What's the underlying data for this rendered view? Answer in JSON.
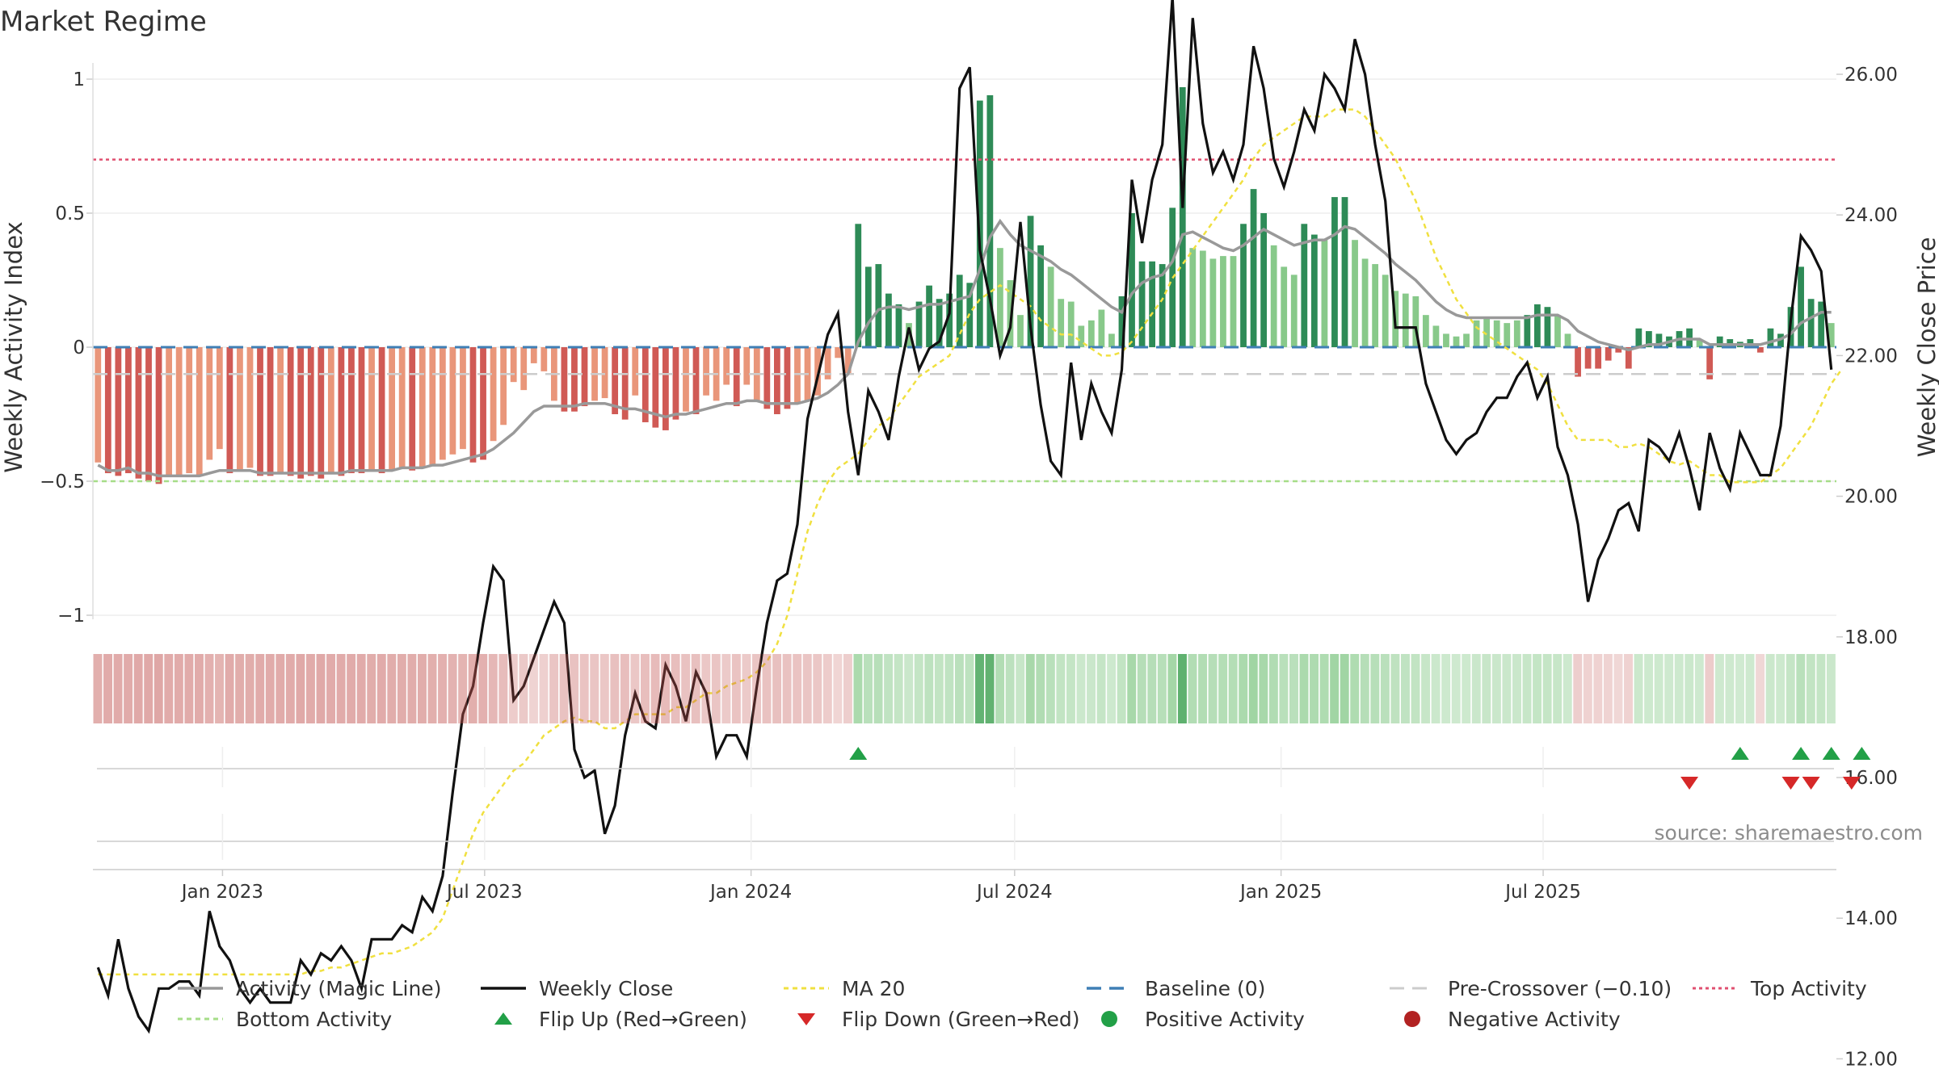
{
  "title": "Market Regime",
  "source": "source: sharemaestro.com",
  "colors": {
    "pos_dark": "#2e8b57",
    "pos_light": "#88c98a",
    "neg_dark": "#d05a55",
    "neg_light": "#e9967a",
    "magic": "#999999",
    "close": "#111111",
    "ma": "#f0e040",
    "baseline": "#3f7fb5",
    "precross": "#cccccc",
    "top": "#e05070",
    "bottom": "#a6dd88",
    "flip_up": "#22a047",
    "flip_down": "#d62828",
    "positive": "#22a047",
    "negative": "#b22222",
    "grid": "#eeeeee"
  },
  "chart_data": {
    "type": "bar",
    "weeks_start": "2022-10-07",
    "interval_days": 7,
    "title": "Market Regime",
    "ylabel_left": "Weekly Activity Index",
    "ylabel_right": "Weekly Close Price",
    "ylim_left": [
      -1,
      1
    ],
    "ylim_right": [
      12,
      27.5
    ],
    "yticks_left": [
      {
        "v": 1,
        "label": "1"
      },
      {
        "v": 0.5,
        "label": "0.5"
      },
      {
        "v": 0,
        "label": "0"
      },
      {
        "v": -0.5,
        "label": "−0.5"
      },
      {
        "v": -1,
        "label": "−1"
      }
    ],
    "yticks_right": [
      "12.00",
      "14.00",
      "16.00",
      "18.00",
      "20.00",
      "22.00",
      "24.00",
      "26.00"
    ],
    "xticks": [
      {
        "date": "2023-01-01",
        "label": "Jan 2023"
      },
      {
        "date": "2023-07-01",
        "label": "Jul 2023"
      },
      {
        "date": "2024-01-01",
        "label": "Jan 2024"
      },
      {
        "date": "2024-07-01",
        "label": "Jul 2024"
      },
      {
        "date": "2025-01-01",
        "label": "Jan 2025"
      },
      {
        "date": "2025-07-01",
        "label": "Jul 2025"
      }
    ],
    "levels": {
      "baseline": 0,
      "pre_crossover": -0.1,
      "top": 0.7,
      "bottom": -0.5
    },
    "activity": [
      -0.43,
      -0.47,
      -0.48,
      -0.47,
      -0.49,
      -0.5,
      -0.51,
      -0.48,
      -0.48,
      -0.47,
      -0.48,
      -0.42,
      -0.38,
      -0.47,
      -0.46,
      -0.45,
      -0.48,
      -0.48,
      -0.47,
      -0.48,
      -0.49,
      -0.48,
      -0.49,
      -0.47,
      -0.48,
      -0.47,
      -0.47,
      -0.46,
      -0.47,
      -0.46,
      -0.45,
      -0.46,
      -0.45,
      -0.44,
      -0.42,
      -0.4,
      -0.38,
      -0.43,
      -0.42,
      -0.35,
      -0.29,
      -0.13,
      -0.16,
      -0.06,
      -0.09,
      -0.2,
      -0.24,
      -0.24,
      -0.22,
      -0.2,
      -0.19,
      -0.25,
      -0.27,
      -0.18,
      -0.28,
      -0.3,
      -0.31,
      -0.27,
      -0.24,
      -0.25,
      -0.18,
      -0.2,
      -0.14,
      -0.22,
      -0.14,
      -0.2,
      -0.23,
      -0.25,
      -0.23,
      -0.21,
      -0.2,
      -0.18,
      -0.12,
      -0.04,
      -0.1,
      0.46,
      0.3,
      0.31,
      0.2,
      0.16,
      0.09,
      0.17,
      0.23,
      0.18,
      0.2,
      0.27,
      0.24,
      0.92,
      0.94,
      0.37,
      0.25,
      0.12,
      0.49,
      0.38,
      0.3,
      0.18,
      0.17,
      0.08,
      0.1,
      0.14,
      0.05,
      0.19,
      0.5,
      0.32,
      0.32,
      0.31,
      0.52,
      0.97,
      0.37,
      0.36,
      0.33,
      0.34,
      0.34,
      0.46,
      0.59,
      0.5,
      0.38,
      0.3,
      0.27,
      0.46,
      0.42,
      0.4,
      0.56,
      0.56,
      0.4,
      0.33,
      0.31,
      0.27,
      0.21,
      0.2,
      0.19,
      0.12,
      0.08,
      0.05,
      0.04,
      0.05,
      0.1,
      0.11,
      0.1,
      0.09,
      0.1,
      0.12,
      0.16,
      0.15,
      0.12,
      0.05,
      -0.11,
      -0.08,
      -0.08,
      -0.05,
      -0.02,
      -0.08,
      0.07,
      0.06,
      0.05,
      0.04,
      0.06,
      0.07,
      0.03,
      -0.12,
      0.04,
      0.03,
      0.02,
      0.03,
      -0.02,
      0.07,
      0.05,
      0.15,
      0.3,
      0.18,
      0.17,
      0.09
    ],
    "magic_line": [
      -0.44,
      -0.46,
      -0.46,
      -0.45,
      -0.47,
      -0.47,
      -0.48,
      -0.48,
      -0.48,
      -0.48,
      -0.48,
      -0.47,
      -0.46,
      -0.46,
      -0.46,
      -0.46,
      -0.47,
      -0.47,
      -0.47,
      -0.47,
      -0.47,
      -0.47,
      -0.47,
      -0.47,
      -0.47,
      -0.46,
      -0.46,
      -0.46,
      -0.46,
      -0.46,
      -0.45,
      -0.45,
      -0.45,
      -0.44,
      -0.44,
      -0.43,
      -0.42,
      -0.41,
      -0.4,
      -0.38,
      -0.35,
      -0.32,
      -0.28,
      -0.24,
      -0.22,
      -0.22,
      -0.22,
      -0.22,
      -0.21,
      -0.21,
      -0.21,
      -0.22,
      -0.23,
      -0.23,
      -0.24,
      -0.25,
      -0.26,
      -0.25,
      -0.25,
      -0.24,
      -0.23,
      -0.22,
      -0.21,
      -0.21,
      -0.2,
      -0.2,
      -0.21,
      -0.21,
      -0.21,
      -0.21,
      -0.2,
      -0.19,
      -0.17,
      -0.14,
      -0.1,
      0.02,
      0.09,
      0.14,
      0.15,
      0.15,
      0.14,
      0.15,
      0.16,
      0.16,
      0.17,
      0.18,
      0.19,
      0.29,
      0.41,
      0.47,
      0.42,
      0.38,
      0.36,
      0.34,
      0.32,
      0.29,
      0.27,
      0.24,
      0.21,
      0.18,
      0.15,
      0.13,
      0.2,
      0.24,
      0.26,
      0.27,
      0.32,
      0.42,
      0.43,
      0.41,
      0.39,
      0.37,
      0.36,
      0.38,
      0.41,
      0.44,
      0.42,
      0.4,
      0.38,
      0.39,
      0.4,
      0.4,
      0.42,
      0.45,
      0.44,
      0.41,
      0.38,
      0.35,
      0.31,
      0.28,
      0.25,
      0.21,
      0.17,
      0.14,
      0.12,
      0.11,
      0.11,
      0.11,
      0.11,
      0.11,
      0.11,
      0.11,
      0.12,
      0.12,
      0.12,
      0.1,
      0.06,
      0.04,
      0.02,
      0.01,
      0.0,
      -0.01,
      0.0,
      0.01,
      0.01,
      0.02,
      0.03,
      0.03,
      0.03,
      0.01,
      0.01,
      0.01,
      0.01,
      0.01,
      0.01,
      0.02,
      0.03,
      0.05,
      0.09,
      0.11,
      0.13,
      0.13
    ],
    "close": [
      13.3,
      12.9,
      13.7,
      13.0,
      12.6,
      12.4,
      13.0,
      13.0,
      13.1,
      13.1,
      12.9,
      14.1,
      13.6,
      13.4,
      13.0,
      12.8,
      13.0,
      12.8,
      12.8,
      12.8,
      13.4,
      13.2,
      13.5,
      13.4,
      13.6,
      13.4,
      13.0,
      13.7,
      13.7,
      13.7,
      13.9,
      13.8,
      14.3,
      14.1,
      14.6,
      15.8,
      16.9,
      17.3,
      18.2,
      19.0,
      18.8,
      17.1,
      17.3,
      17.7,
      18.1,
      18.5,
      18.2,
      16.4,
      16.0,
      16.1,
      15.2,
      15.6,
      16.6,
      17.2,
      16.8,
      16.7,
      17.6,
      17.3,
      16.8,
      17.5,
      17.2,
      16.3,
      16.6,
      16.6,
      16.3,
      17.3,
      18.2,
      18.8,
      18.9,
      19.6,
      21.1,
      21.7,
      22.3,
      22.6,
      21.2,
      20.3,
      21.5,
      21.2,
      20.8,
      21.7,
      22.4,
      21.8,
      22.1,
      22.2,
      22.6,
      25.8,
      26.1,
      23.5,
      22.8,
      22.0,
      22.4,
      23.9,
      22.4,
      21.3,
      20.5,
      20.3,
      21.9,
      20.8,
      21.6,
      21.2,
      20.9,
      21.8,
      24.5,
      23.6,
      24.5,
      25.0,
      27.1,
      24.1,
      26.8,
      25.3,
      24.6,
      24.9,
      24.5,
      25.0,
      26.4,
      25.8,
      24.8,
      24.4,
      24.9,
      25.5,
      25.2,
      26.0,
      25.8,
      25.5,
      26.5,
      26.0,
      25.0,
      24.2,
      22.4,
      22.4,
      22.4,
      21.6,
      21.2,
      20.8,
      20.6,
      20.8,
      20.9,
      21.2,
      21.4,
      21.4,
      21.7,
      21.9,
      21.4,
      21.7,
      20.7,
      20.3,
      19.6,
      18.5,
      19.1,
      19.4,
      19.8,
      19.9,
      19.5,
      20.8,
      20.7,
      20.5,
      20.9,
      20.4,
      19.8,
      20.9,
      20.4,
      20.1,
      20.9,
      20.6,
      20.3,
      20.3,
      21.0,
      22.5,
      23.7,
      23.5,
      23.2,
      21.8
    ],
    "ma20": [
      13.2,
      13.2,
      13.2,
      13.2,
      13.2,
      13.2,
      13.2,
      13.2,
      13.2,
      13.2,
      13.2,
      13.2,
      13.2,
      13.2,
      13.2,
      13.2,
      13.2,
      13.2,
      13.2,
      13.2,
      13.2,
      13.25,
      13.25,
      13.3,
      13.3,
      13.35,
      13.4,
      13.45,
      13.5,
      13.5,
      13.55,
      13.6,
      13.7,
      13.8,
      14.0,
      14.4,
      14.8,
      15.2,
      15.5,
      15.7,
      15.9,
      16.1,
      16.2,
      16.4,
      16.6,
      16.7,
      16.8,
      16.85,
      16.8,
      16.8,
      16.7,
      16.7,
      16.8,
      16.9,
      16.9,
      16.9,
      16.9,
      17.0,
      17.0,
      17.1,
      17.2,
      17.2,
      17.3,
      17.35,
      17.4,
      17.5,
      17.65,
      17.9,
      18.3,
      18.9,
      19.5,
      19.9,
      20.2,
      20.4,
      20.5,
      20.6,
      20.8,
      21.0,
      21.1,
      21.3,
      21.5,
      21.7,
      21.8,
      21.9,
      22.0,
      22.3,
      22.6,
      22.8,
      22.9,
      23.0,
      22.9,
      22.8,
      22.7,
      22.5,
      22.4,
      22.3,
      22.3,
      22.2,
      22.1,
      22.0,
      22.0,
      22.05,
      22.2,
      22.4,
      22.6,
      22.8,
      23.1,
      23.3,
      23.5,
      23.7,
      23.9,
      24.1,
      24.3,
      24.5,
      24.8,
      25.0,
      25.1,
      25.2,
      25.3,
      25.4,
      25.4,
      25.4,
      25.5,
      25.5,
      25.5,
      25.4,
      25.2,
      25.0,
      24.8,
      24.5,
      24.2,
      23.8,
      23.4,
      23.1,
      22.8,
      22.6,
      22.4,
      22.3,
      22.2,
      22.1,
      22.0,
      21.9,
      21.8,
      21.6,
      21.3,
      21.0,
      20.8,
      20.8,
      20.8,
      20.8,
      20.7,
      20.7,
      20.75,
      20.7,
      20.6,
      20.5,
      20.45,
      20.5,
      20.4,
      20.3,
      20.3,
      20.2,
      20.2,
      20.2,
      20.2,
      20.3,
      20.4,
      20.6,
      20.8,
      21.0,
      21.3,
      21.6,
      21.8
    ],
    "flip_up_weeks": [
      75,
      162,
      168,
      171,
      174
    ],
    "flip_down_weeks": [
      157,
      167,
      169,
      173
    ]
  },
  "legend": {
    "magic": "Activity (Magic Line)",
    "close": "Weekly Close",
    "ma": "MA 20",
    "baseline": "Baseline (0)",
    "precross": "Pre-Crossover (−0.10)",
    "top": "Top Activity",
    "bottom": "Bottom Activity",
    "flip_up": "Flip Up (Red→Green)",
    "flip_down": "Flip Down (Green→Red)",
    "positive": "Positive Activity",
    "negative": "Negative Activity"
  }
}
